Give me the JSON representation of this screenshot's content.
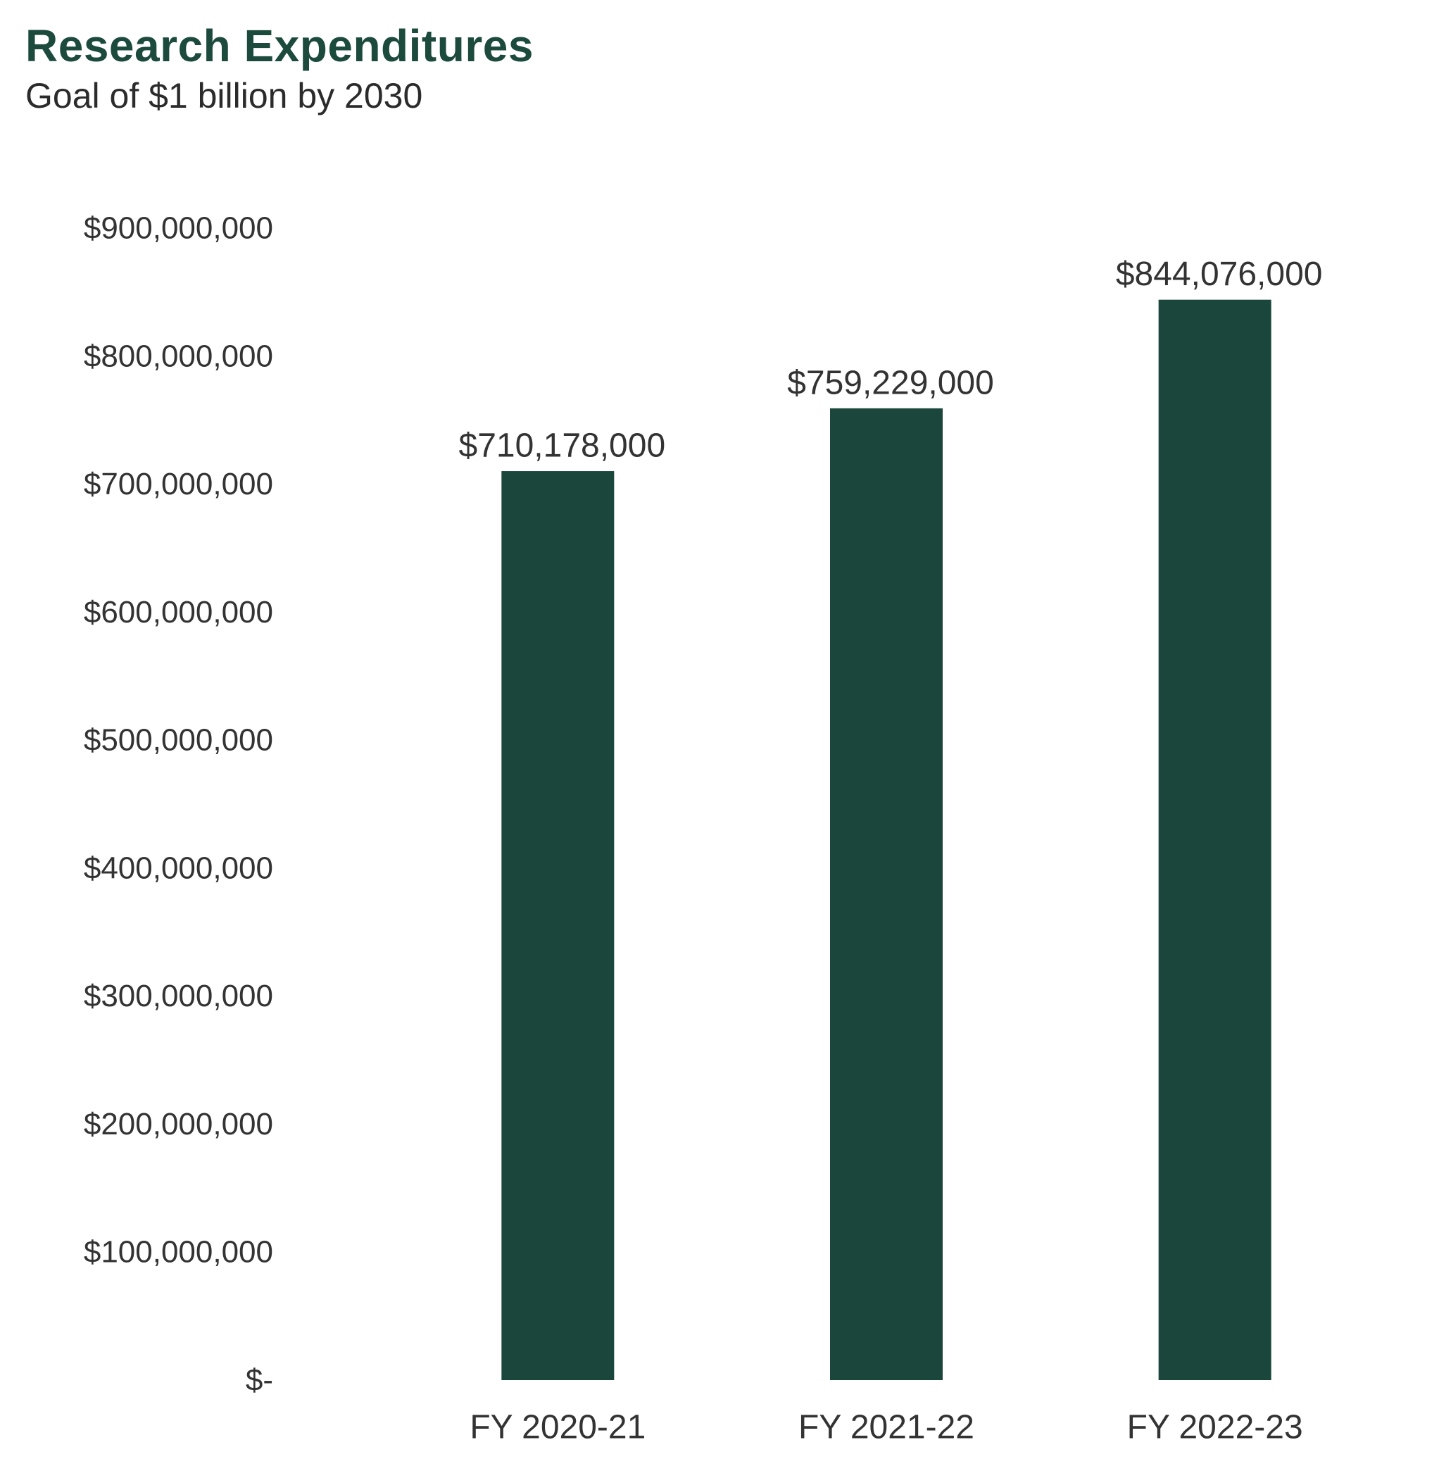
{
  "colors": {
    "title": "#1c4a3c",
    "bar": "#1a463b",
    "text": "#333333"
  },
  "chart_data": {
    "type": "bar",
    "title": "Research Expenditures",
    "subtitle": "Goal of $1 billion by 2030",
    "xlabel": "",
    "ylabel": "",
    "categories": [
      "FY 2020-21",
      "FY 2021-22",
      "FY 2022-23"
    ],
    "values": [
      710178000,
      759229000,
      844076000
    ],
    "data_labels": [
      "$710,178,000",
      "$759,229,000",
      "$844,076,000"
    ],
    "ylim": [
      0,
      900000000
    ],
    "y_ticks": [
      {
        "value": 0,
        "label": "$-"
      },
      {
        "value": 100000000,
        "label": "$100,000,000"
      },
      {
        "value": 200000000,
        "label": "$200,000,000"
      },
      {
        "value": 300000000,
        "label": "$300,000,000"
      },
      {
        "value": 400000000,
        "label": "$400,000,000"
      },
      {
        "value": 500000000,
        "label": "$500,000,000"
      },
      {
        "value": 600000000,
        "label": "$600,000,000"
      },
      {
        "value": 700000000,
        "label": "$700,000,000"
      },
      {
        "value": 800000000,
        "label": "$800,000,000"
      },
      {
        "value": 900000000,
        "label": "$900,000,000"
      }
    ],
    "grid": false,
    "legend": "none"
  }
}
